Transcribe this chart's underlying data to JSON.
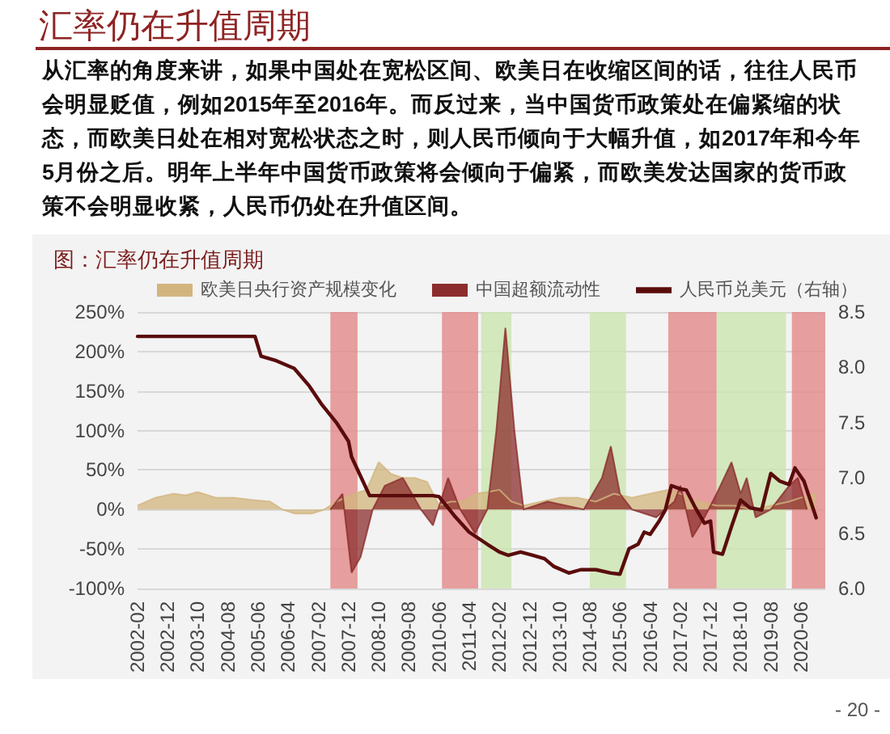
{
  "chart_data": {
    "type": "area",
    "title": "汇率仍在升值周期",
    "subtitle": "图：汇率仍在升值周期",
    "annotations": [
      "从汇率的角度来讲，如果中国处在宽松区间、欧美日在收缩区间的话，往往人民币会明显贬值，例如2015年至2016年。而反过来，当中国货币政策处在偏紧缩的状态，而欧美日处在相对宽松状态之时，则人民币倾向于大幅升值，如2017年和今年5月份之后。明年上半年中国货币政策将会倾向于偏紧，而欧美发达国家的货币政策不会明显收紧，人民币仍处在升值区间。",
      "- 20 -"
    ],
    "xlim": [
      "2002-02",
      "2021-02"
    ],
    "xticks": [
      "2002-02",
      "2002-12",
      "2003-10",
      "2004-08",
      "2005-06",
      "2006-04",
      "2007-02",
      "2007-12",
      "2008-10",
      "2009-08",
      "2010-06",
      "2011-04",
      "2012-02",
      "2012-12",
      "2013-10",
      "2014-08",
      "2015-06",
      "2016-04",
      "2017-02",
      "2017-12",
      "2018-10",
      "2019-08",
      "2020-06"
    ],
    "ylim": [
      -100,
      250
    ],
    "yticks": [
      {
        "value": -100,
        "label": "-100%"
      },
      {
        "value": -50,
        "label": "-50%"
      },
      {
        "value": 0,
        "label": "0%"
      },
      {
        "value": 50,
        "label": "50%"
      },
      {
        "value": 100,
        "label": "100%"
      },
      {
        "value": 150,
        "label": "150%"
      },
      {
        "value": 200,
        "label": "200%"
      },
      {
        "value": 250,
        "label": "250%"
      }
    ],
    "y2lim": [
      6.0,
      8.5
    ],
    "y2ticks": [
      {
        "value": 6,
        "label": "6.0"
      },
      6.5,
      {
        "value": 7,
        "label": "7.0"
      },
      7.5,
      {
        "value": 8,
        "label": "8.0"
      },
      8.5
    ],
    "grid": "y",
    "legend": "top",
    "bands": [
      {
        "axis": "x",
        "from": "2007-06",
        "to": "2008-03",
        "color": "#e38e8e"
      },
      {
        "axis": "x",
        "from": "2010-07",
        "to": "2011-07",
        "color": "#e38e8e"
      },
      {
        "axis": "x",
        "from": "2011-08",
        "to": "2012-06",
        "color": "#cde5b3"
      },
      {
        "axis": "x",
        "from": "2014-08",
        "to": "2015-08",
        "color": "#cde5b3"
      },
      {
        "axis": "x",
        "from": "2016-10",
        "to": "2018-02",
        "color": "#e38e8e"
      },
      {
        "axis": "x",
        "from": "2018-02",
        "to": "2020-01",
        "color": "#cde5b3"
      },
      {
        "axis": "x",
        "from": "2020-03",
        "to": "2021-02",
        "color": "#e38e8e"
      }
    ],
    "series": [
      {
        "name": "欧美日央行资产规模变化",
        "color": "#d2b57e",
        "x": [
          "2002-02",
          "2002-08",
          "2003-02",
          "2003-06",
          "2003-10",
          "2004-04",
          "2004-10",
          "2005-04",
          "2005-10",
          "2006-02",
          "2006-06",
          "2006-12",
          "2007-04",
          "2007-08",
          "2008-02",
          "2008-06",
          "2008-10",
          "2009-02",
          "2009-06",
          "2009-10",
          "2010-02",
          "2010-06",
          "2010-10",
          "2011-02",
          "2011-06",
          "2011-10",
          "2012-02",
          "2012-06",
          "2012-10",
          "2013-04",
          "2013-10",
          "2014-04",
          "2014-10",
          "2015-04",
          "2015-10",
          "2016-04",
          "2016-10",
          "2017-02",
          "2017-08",
          "2018-02",
          "2018-08",
          "2019-02",
          "2019-08",
          "2020-02",
          "2020-06",
          "2020-11"
        ],
        "values": [
          5,
          15,
          20,
          18,
          22,
          15,
          15,
          12,
          10,
          0,
          -5,
          -5,
          0,
          10,
          20,
          25,
          60,
          45,
          40,
          40,
          35,
          5,
          10,
          10,
          20,
          22,
          25,
          10,
          5,
          10,
          15,
          15,
          10,
          20,
          15,
          20,
          25,
          20,
          10,
          5,
          5,
          0,
          5,
          10,
          15,
          20
        ]
      },
      {
        "name": "中国超额流动性",
        "color": "#8c2d2d",
        "x": [
          "2007-06",
          "2007-10",
          "2008-01",
          "2008-04",
          "2008-08",
          "2008-12",
          "2009-06",
          "2009-12",
          "2010-04",
          "2010-09",
          "2011-01",
          "2011-06",
          "2011-10",
          "2012-01",
          "2012-04",
          "2012-07",
          "2012-10",
          "2013-06",
          "2014-06",
          "2014-12",
          "2015-03",
          "2015-06",
          "2015-10",
          "2016-06",
          "2016-12",
          "2017-02",
          "2017-06",
          "2017-10",
          "2018-02",
          "2018-07",
          "2018-10",
          "2018-12",
          "2019-03",
          "2019-08",
          "2020-02",
          "2020-05",
          "2020-08"
        ],
        "values": [
          0,
          20,
          -80,
          -60,
          0,
          30,
          40,
          0,
          -20,
          40,
          0,
          -30,
          0,
          100,
          230,
          100,
          0,
          10,
          0,
          40,
          80,
          20,
          0,
          -10,
          10,
          30,
          -35,
          -10,
          20,
          60,
          20,
          40,
          -10,
          0,
          30,
          40,
          0
        ]
      },
      {
        "name": "人民币兑美元（右轴）",
        "type": "line",
        "axis": "y2",
        "color": "#5a0c0c",
        "x": [
          "2002-02",
          "2005-05",
          "2005-07",
          "2005-12",
          "2006-06",
          "2006-11",
          "2007-03",
          "2007-08",
          "2007-12",
          "2008-01",
          "2008-07",
          "2010-04",
          "2010-06",
          "2010-11",
          "2011-04",
          "2011-10",
          "2012-02",
          "2012-05",
          "2012-09",
          "2013-01",
          "2013-05",
          "2013-08",
          "2014-01",
          "2014-05",
          "2014-10",
          "2015-03",
          "2015-06",
          "2015-09",
          "2015-12",
          "2016-02",
          "2016-04",
          "2016-07",
          "2016-09",
          "2016-11",
          "2017-02",
          "2017-04",
          "2017-07",
          "2017-10",
          "2017-12",
          "2018-01",
          "2018-04",
          "2018-07",
          "2018-10",
          "2019-01",
          "2019-05",
          "2019-08",
          "2019-11",
          "2020-02",
          "2020-04",
          "2020-07",
          "2020-11"
        ],
        "values": [
          8.28,
          8.28,
          8.1,
          8.06,
          7.99,
          7.83,
          7.67,
          7.5,
          7.33,
          7.19,
          6.84,
          6.84,
          6.83,
          6.66,
          6.51,
          6.4,
          6.33,
          6.3,
          6.33,
          6.3,
          6.27,
          6.2,
          6.14,
          6.17,
          6.17,
          6.14,
          6.13,
          6.36,
          6.4,
          6.51,
          6.49,
          6.61,
          6.71,
          6.93,
          6.9,
          6.89,
          6.73,
          6.59,
          6.61,
          6.33,
          6.31,
          6.56,
          6.8,
          6.73,
          6.71,
          7.04,
          6.97,
          6.94,
          7.09,
          6.97,
          6.64
        ]
      }
    ]
  }
}
